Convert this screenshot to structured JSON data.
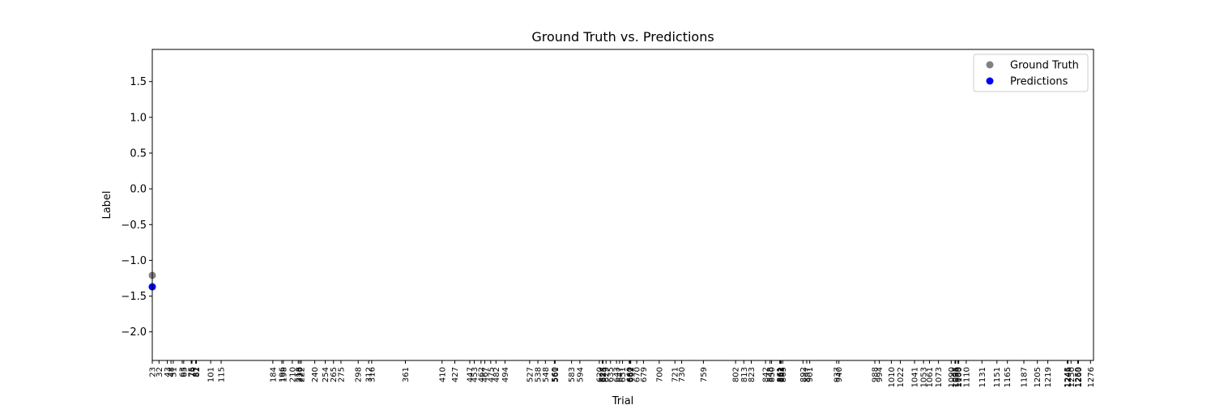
{
  "chart_data": {
    "type": "scatter",
    "title": "Ground Truth vs. Predictions",
    "xlabel": "Trial",
    "ylabel": "Label",
    "ylim": [
      -2.4,
      1.95
    ],
    "xlim": [
      23,
      1280
    ],
    "yticks": [
      1.5,
      1.0,
      0.5,
      0.0,
      -0.5,
      -1.0,
      -1.5,
      -2.0
    ],
    "ytick_labels": [
      "1.5",
      "1.0",
      "0.5",
      "0.0",
      "−0.5",
      "−1.0",
      "−1.5",
      "−2.0"
    ],
    "xticks": [
      23,
      32,
      43,
      48,
      51,
      63,
      65,
      75,
      76,
      81,
      82,
      101,
      115,
      184,
      196,
      198,
      210,
      218,
      220,
      222,
      240,
      254,
      265,
      275,
      298,
      312,
      316,
      361,
      410,
      427,
      447,
      453,
      462,
      467,
      475,
      482,
      494,
      527,
      538,
      548,
      560,
      561,
      583,
      594,
      620,
      624,
      625,
      629,
      635,
      643,
      647,
      651,
      660,
      661,
      662,
      670,
      679,
      700,
      721,
      730,
      759,
      802,
      813,
      823,
      842,
      848,
      850,
      861,
      862,
      863,
      865,
      892,
      897,
      901,
      937,
      940,
      988,
      994,
      1010,
      1022,
      1041,
      1053,
      1061,
      1073,
      1090,
      1095,
      1096,
      1099,
      1100,
      1110,
      1131,
      1151,
      1165,
      1187,
      1205,
      1219,
      1245,
      1246,
      1250,
      1259,
      1260,
      1276
    ],
    "series": [
      {
        "name": "Ground Truth",
        "color": "#808080",
        "x": [
          23
        ],
        "y": [
          -1.21
        ]
      },
      {
        "name": "Predictions",
        "color": "#0000ff",
        "x": [
          23
        ],
        "y": [
          -1.37
        ]
      }
    ],
    "legend": "top-right",
    "grid": false
  }
}
